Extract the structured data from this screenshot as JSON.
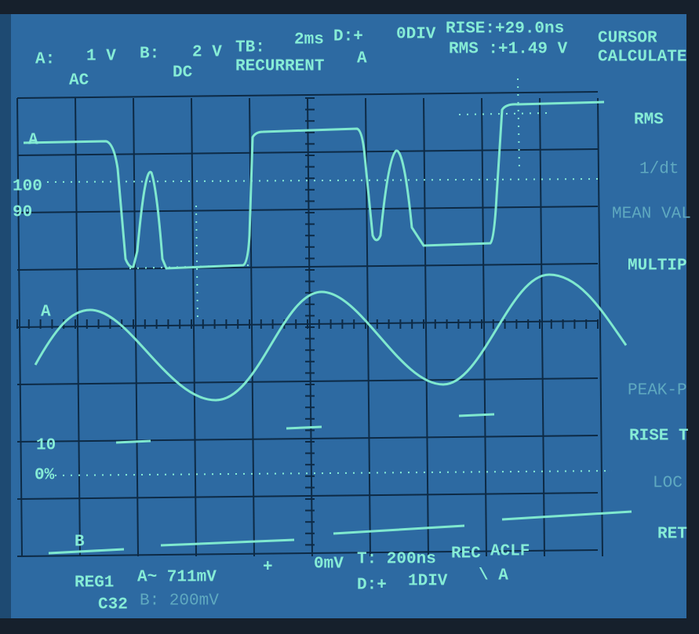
{
  "top_line_1": [
    "A:",
    "1 V",
    "B:",
    "2 V",
    "TB:",
    "2ms",
    "D:+",
    "0DIV",
    "RISE:+29.0ns"
  ],
  "top_line_2": [
    "AC",
    "DC",
    "RECURRENT",
    "A",
    "RMS :+1.49 V"
  ],
  "menu_header": [
    "CURSOR",
    "CALCULATE"
  ],
  "menu_items": [
    "RMS",
    "1/dt",
    "MEAN VAL",
    "MULTIP",
    "PEAK-P",
    "RISE T",
    "LOC",
    "RET"
  ],
  "scale_labels": [
    "100",
    "90",
    "10",
    "0%"
  ],
  "trace_labels": [
    "A",
    "A",
    "B"
  ],
  "bottom_line_1": [
    "REG1",
    "A~ 711mV",
    "+",
    "0mV",
    "T: 200ns",
    "REC",
    "ACLF"
  ],
  "bottom_line_2": [
    "C32",
    "B: 200mV",
    "D:+",
    "1DIV",
    "\\ A"
  ]
}
